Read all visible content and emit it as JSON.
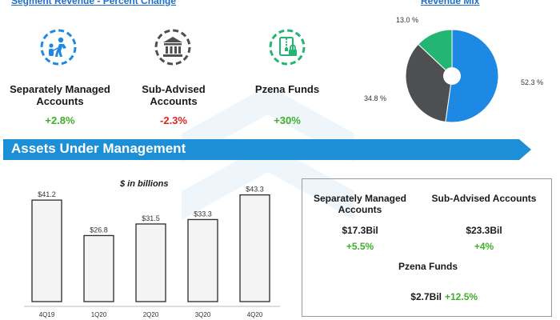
{
  "header": {
    "segment_link": "Segment Revenue - Percent Change",
    "revenue_mix_link": "Revenue Mix"
  },
  "segments": [
    {
      "name": "Separately Managed Accounts",
      "change": "+2.8%",
      "icon": "people-network-icon"
    },
    {
      "name": "Sub-Advised Accounts",
      "change": "-2.3%",
      "icon": "bank-icon"
    },
    {
      "name": "Pzena Funds",
      "change": "+30%",
      "icon": "locked-file-icon"
    }
  ],
  "colors": {
    "blue": "#1e88e5",
    "dark_gray": "#4d4f50",
    "green": "#22b573",
    "banner": "#1d8fd6",
    "positive": "#3fae2a",
    "negative": "#e02424"
  },
  "aum": {
    "title": "Assets Under Management",
    "unit_label": "$ in billions"
  },
  "aum_box": {
    "sma_label": "Separately Managed Accounts",
    "sma_value": "$17.3Bil",
    "sma_change": "+5.5%",
    "sub_label": "Sub-Advised Accounts",
    "sub_value": "$23.3Bil",
    "sub_change": "+4%",
    "funds_label": "Pzena Funds",
    "funds_value": "$2.7Bil",
    "funds_change": "+12.5%"
  },
  "chart_data": [
    {
      "type": "pie",
      "title": "Revenue Mix",
      "labels": [
        "52.3 %",
        "34.8 %",
        "13.0 %"
      ],
      "values": [
        52.3,
        34.8,
        13.0
      ],
      "colors": [
        "#1e88e5",
        "#4d4f50",
        "#22b573"
      ]
    },
    {
      "type": "bar",
      "categories": [
        "4Q19",
        "1Q20",
        "2Q20",
        "3Q20",
        "4Q20"
      ],
      "values": [
        41.2,
        26.8,
        31.5,
        33.3,
        43.3
      ],
      "value_labels": [
        "$41.2",
        "$26.8",
        "$31.5",
        "$33.3",
        "$43.3"
      ],
      "ylabel": "$ in billions",
      "ylim": [
        0,
        50
      ],
      "grid": false
    }
  ]
}
